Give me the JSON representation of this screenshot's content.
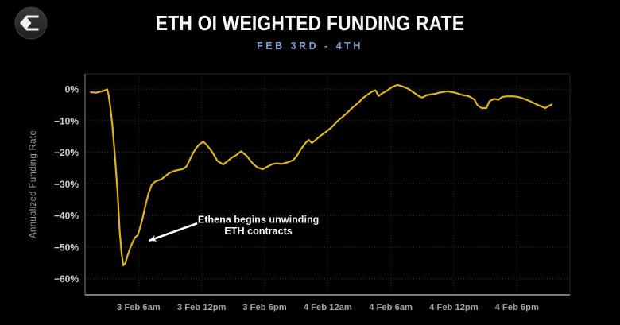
{
  "header": {
    "title": "ETH OI WEIGHTED FUNDING RATE",
    "subtitle": "FEB 3RD - 4TH",
    "logo": "sigma-diamond-logo"
  },
  "colors": {
    "background": "#000000",
    "title": "#f7f7f7",
    "subtitle": "#7d9fd2",
    "line": "#dcb51c",
    "grid_h": "#3a3a3a",
    "grid_v": "#2c2c2c",
    "plot_border": "#232323",
    "axis_left": "#6f6f6f",
    "axis_bottom": "#7a7a7a",
    "y_tick_label": "#cfcfcf",
    "x_tick_label": "#a2a2a2",
    "axis_title": "#9e9e9e",
    "annotation_text": "#f5f5f5",
    "arrow": "#ffffff",
    "logo_bg": "#282828",
    "logo_ring": "#3d3d3d",
    "logo_glyph": "#f2f2f2"
  },
  "chart_data": {
    "type": "line",
    "title": "ETH OI WEIGHTED FUNDING RATE",
    "subtitle": "FEB 3RD - 4TH",
    "xlabel": "",
    "ylabel": "Annualized Funding Rate",
    "x_unit": "hours since 3 Feb 00:00",
    "xlim": [
      0.9,
      47.05
    ],
    "ylim": [
      4.8,
      -65.1
    ],
    "grid": true,
    "legend": false,
    "y_ticks": [
      {
        "value": 0,
        "label": "0%"
      },
      {
        "value": -10,
        "label": "−10%"
      },
      {
        "value": -20,
        "label": "−20%"
      },
      {
        "value": -30,
        "label": "−30%"
      },
      {
        "value": -40,
        "label": "−40%"
      },
      {
        "value": -50,
        "label": "−50%"
      },
      {
        "value": -60,
        "label": "−60%"
      }
    ],
    "x_ticks": [
      {
        "value": 6,
        "label": "3 Feb 6am"
      },
      {
        "value": 12,
        "label": "3 Feb 12pm"
      },
      {
        "value": 18,
        "label": "3 Feb 6pm"
      },
      {
        "value": 24,
        "label": "4 Feb 12am"
      },
      {
        "value": 30,
        "label": "4 Feb 6am"
      },
      {
        "value": 36,
        "label": "4 Feb 12pm"
      },
      {
        "value": 42,
        "label": "4 Feb 6pm"
      }
    ],
    "series": [
      {
        "name": "ETH OI weighted funding rate (annualized %)",
        "color": "#dcb51c",
        "points": [
          [
            1.45,
            -1.0
          ],
          [
            2.0,
            -1.1
          ],
          [
            2.5,
            -0.7
          ],
          [
            2.9,
            -0.3
          ],
          [
            3.02,
            -0.1
          ],
          [
            3.15,
            -2.0
          ],
          [
            3.3,
            -5.5
          ],
          [
            3.5,
            -11.5
          ],
          [
            3.75,
            -21.5
          ],
          [
            4.0,
            -33.0
          ],
          [
            4.2,
            -45.0
          ],
          [
            4.38,
            -52.0
          ],
          [
            4.55,
            -55.8
          ],
          [
            4.75,
            -55.0
          ],
          [
            4.95,
            -52.7
          ],
          [
            5.2,
            -50.3
          ],
          [
            5.45,
            -48.3
          ],
          [
            5.65,
            -47.0
          ],
          [
            5.9,
            -46.3
          ],
          [
            6.1,
            -44.4
          ],
          [
            6.35,
            -41.3
          ],
          [
            6.65,
            -36.9
          ],
          [
            6.95,
            -32.9
          ],
          [
            7.25,
            -30.3
          ],
          [
            7.55,
            -29.3
          ],
          [
            7.85,
            -28.9
          ],
          [
            8.15,
            -28.6
          ],
          [
            8.55,
            -27.5
          ],
          [
            8.9,
            -26.6
          ],
          [
            9.3,
            -26.0
          ],
          [
            9.75,
            -25.6
          ],
          [
            10.25,
            -25.3
          ],
          [
            10.55,
            -24.5
          ],
          [
            10.85,
            -22.5
          ],
          [
            11.15,
            -20.4
          ],
          [
            11.45,
            -18.8
          ],
          [
            11.75,
            -17.6
          ],
          [
            12.15,
            -16.6
          ],
          [
            12.45,
            -17.6
          ],
          [
            12.85,
            -19.2
          ],
          [
            13.15,
            -20.7
          ],
          [
            13.5,
            -22.7
          ],
          [
            14.05,
            -23.9
          ],
          [
            14.5,
            -22.7
          ],
          [
            14.85,
            -21.7
          ],
          [
            15.3,
            -20.9
          ],
          [
            15.75,
            -19.7
          ],
          [
            16.3,
            -21.2
          ],
          [
            16.85,
            -23.5
          ],
          [
            17.3,
            -24.8
          ],
          [
            17.8,
            -25.4
          ],
          [
            18.25,
            -24.6
          ],
          [
            18.7,
            -23.8
          ],
          [
            19.15,
            -23.5
          ],
          [
            19.6,
            -23.7
          ],
          [
            20.15,
            -23.2
          ],
          [
            20.7,
            -22.5
          ],
          [
            21.05,
            -21.2
          ],
          [
            21.45,
            -19.0
          ],
          [
            21.9,
            -17.0
          ],
          [
            22.2,
            -16.1
          ],
          [
            22.5,
            -17.1
          ],
          [
            22.85,
            -16.1
          ],
          [
            23.3,
            -14.8
          ],
          [
            23.85,
            -13.5
          ],
          [
            24.4,
            -12.0
          ],
          [
            24.9,
            -10.2
          ],
          [
            25.45,
            -8.7
          ],
          [
            25.95,
            -7.2
          ],
          [
            26.4,
            -5.7
          ],
          [
            26.95,
            -4.2
          ],
          [
            27.4,
            -2.7
          ],
          [
            27.85,
            -1.6
          ],
          [
            28.25,
            -0.7
          ],
          [
            28.55,
            -0.4
          ],
          [
            28.85,
            -2.2
          ],
          [
            29.15,
            -1.4
          ],
          [
            29.6,
            -0.6
          ],
          [
            30.1,
            0.6
          ],
          [
            30.65,
            1.3
          ],
          [
            31.15,
            0.8
          ],
          [
            31.6,
            0.2
          ],
          [
            32.15,
            -1.0
          ],
          [
            32.7,
            -2.3
          ],
          [
            33.0,
            -2.7
          ],
          [
            33.45,
            -1.9
          ],
          [
            34.2,
            -1.5
          ],
          [
            34.8,
            -1.0
          ],
          [
            35.4,
            -0.7
          ],
          [
            36.1,
            -1.1
          ],
          [
            36.7,
            -1.8
          ],
          [
            37.45,
            -2.3
          ],
          [
            37.95,
            -3.3
          ],
          [
            38.25,
            -5.1
          ],
          [
            38.65,
            -6.0
          ],
          [
            39.1,
            -6.0
          ],
          [
            39.4,
            -3.8
          ],
          [
            39.85,
            -3.1
          ],
          [
            40.25,
            -3.4
          ],
          [
            40.6,
            -2.5
          ],
          [
            41.05,
            -2.3
          ],
          [
            41.6,
            -2.3
          ],
          [
            41.95,
            -2.4
          ],
          [
            42.35,
            -2.7
          ],
          [
            42.85,
            -3.3
          ],
          [
            43.3,
            -3.9
          ],
          [
            43.85,
            -4.8
          ],
          [
            44.4,
            -5.6
          ],
          [
            44.7,
            -6.0
          ],
          [
            45.0,
            -5.4
          ],
          [
            45.3,
            -4.9
          ]
        ]
      }
    ],
    "annotation": {
      "lines": [
        "Ethena begins unwinding",
        "ETH contracts"
      ],
      "text_anchor": {
        "t": 17.4,
        "v": -42.4
      },
      "arrow": {
        "from": {
          "t": 11.5,
          "v": -42.6
        },
        "to": {
          "t": 7.05,
          "v": -47.9
        }
      }
    }
  }
}
